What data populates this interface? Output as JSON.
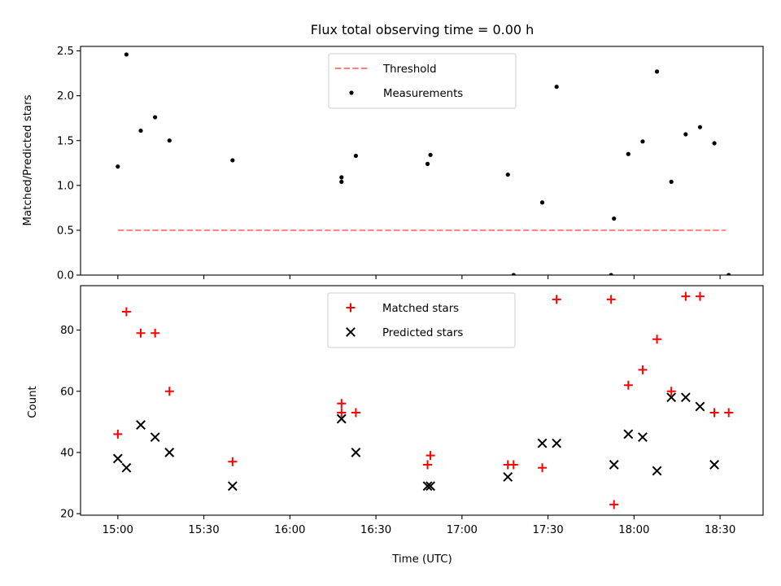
{
  "chart_data": [
    {
      "type": "scatter",
      "title": "Flux total observing time = 0.00 h",
      "ylabel": "Matched/Predicted stars",
      "xlabel": "",
      "xlim": [
        "14:47",
        "18:45"
      ],
      "ylim": [
        0,
        2.55
      ],
      "yticks": [
        0.0,
        0.5,
        1.0,
        1.5,
        2.0,
        2.5
      ],
      "legend_position": "top-center",
      "series": [
        {
          "name": "Threshold",
          "style": "dashed-line",
          "color": "#ff7f7f",
          "x": [
            "15:00",
            "18:32"
          ],
          "y": [
            0.5,
            0.5
          ]
        },
        {
          "name": "Measurements",
          "style": "dot",
          "color": "#000000",
          "x": [
            "15:00",
            "15:03",
            "15:08",
            "15:13",
            "15:18",
            "15:40",
            "16:18",
            "16:18",
            "16:23",
            "16:48",
            "16:49",
            "17:16",
            "17:18",
            "17:28",
            "17:33",
            "17:52",
            "17:53",
            "17:58",
            "18:03",
            "18:08",
            "18:13",
            "18:18",
            "18:23",
            "18:28",
            "18:33"
          ],
          "y": [
            1.21,
            2.46,
            1.61,
            1.76,
            1.5,
            1.28,
            1.09,
            1.04,
            1.33,
            1.24,
            1.34,
            1.12,
            0.0,
            0.81,
            2.1,
            0.0,
            0.63,
            1.35,
            1.49,
            2.27,
            1.04,
            1.57,
            1.65,
            1.47,
            0.0
          ]
        }
      ]
    },
    {
      "type": "scatter",
      "title": "",
      "ylabel": "Count",
      "xlabel": "Time (UTC)",
      "xlim": [
        "14:47",
        "18:45"
      ],
      "ylim": [
        19.5,
        94.5
      ],
      "yticks": [
        20,
        40,
        60,
        80
      ],
      "xticks": [
        "15:00",
        "15:30",
        "16:00",
        "16:30",
        "17:00",
        "17:30",
        "18:00",
        "18:30"
      ],
      "legend_position": "top-center",
      "series": [
        {
          "name": "Matched stars",
          "style": "plus",
          "color": "#ff0000",
          "x": [
            "15:00",
            "15:03",
            "15:08",
            "15:13",
            "15:18",
            "15:40",
            "16:18",
            "16:18",
            "16:23",
            "16:48",
            "16:49",
            "17:16",
            "17:18",
            "17:28",
            "17:33",
            "17:52",
            "17:53",
            "17:58",
            "18:03",
            "18:08",
            "18:13",
            "18:18",
            "18:23",
            "18:28",
            "18:33"
          ],
          "y": [
            46,
            86,
            79,
            79,
            60,
            37,
            56,
            53,
            53,
            36,
            39,
            36,
            36,
            35,
            90,
            90,
            23,
            62,
            67,
            77,
            60,
            91,
            91,
            53,
            53
          ]
        },
        {
          "name": "Predicted stars",
          "style": "x",
          "color": "#000000",
          "x": [
            "15:00",
            "15:03",
            "15:08",
            "15:13",
            "15:18",
            "15:40",
            "16:18",
            "16:23",
            "16:48",
            "16:49",
            "17:16",
            "17:28",
            "17:33",
            "17:53",
            "17:58",
            "18:03",
            "18:08",
            "18:13",
            "18:18",
            "18:23",
            "18:28"
          ],
          "y": [
            38,
            35,
            49,
            45,
            40,
            29,
            51,
            40,
            29,
            29,
            32,
            43,
            43,
            36,
            46,
            45,
            34,
            58,
            58,
            55,
            36
          ]
        }
      ]
    }
  ]
}
